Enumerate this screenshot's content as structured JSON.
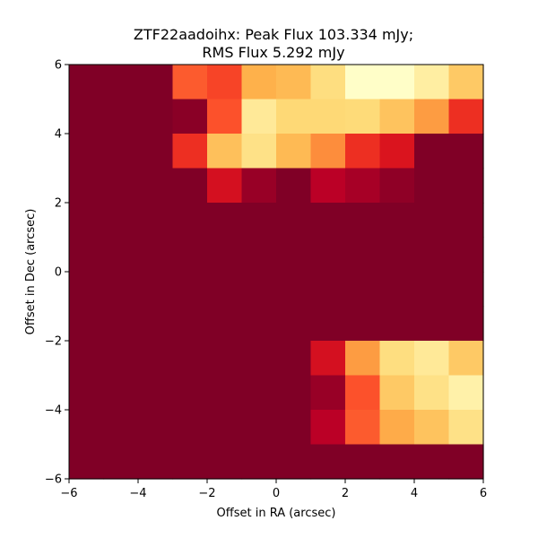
{
  "chart_data": {
    "type": "heatmap",
    "title_line1": "ZTF22aadoihx: Peak Flux 103.334 mJy;",
    "title_line2": "RMS Flux 5.292 mJy",
    "xlabel": "Offset in RA (arcsec)",
    "ylabel": "Offset in Dec (arcsec)",
    "xlim": [
      -6,
      6
    ],
    "ylim": [
      -6,
      6
    ],
    "x_ticks": [
      "−6",
      "−4",
      "−2",
      "0",
      "2",
      "4",
      "6"
    ],
    "y_ticks": [
      "−6",
      "−4",
      "−2",
      "0",
      "2",
      "4",
      "6"
    ],
    "x_tick_values": [
      -6,
      -4,
      -2,
      0,
      2,
      4,
      6
    ],
    "y_tick_values": [
      -6,
      -4,
      -2,
      0,
      2,
      4,
      6
    ],
    "colormap": "YlOrRd_r",
    "grid": false,
    "columns": 12,
    "rows": 12,
    "row_order": "top-to-bottom",
    "values": [
      [
        0.0,
        0.0,
        0.0,
        0.4,
        0.35,
        0.62,
        0.65,
        0.78,
        0.99,
        0.99,
        0.88,
        0.7
      ],
      [
        0.0,
        0.0,
        0.0,
        0.02,
        0.38,
        0.85,
        0.75,
        0.75,
        0.76,
        0.68,
        0.55,
        0.3
      ],
      [
        0.0,
        0.0,
        0.0,
        0.3,
        0.67,
        0.8,
        0.65,
        0.5,
        0.3,
        0.22,
        0.0,
        0.0
      ],
      [
        0.0,
        0.0,
        0.0,
        0.0,
        0.2,
        0.05,
        0.0,
        0.12,
        0.08,
        0.03,
        0.0,
        0.0
      ],
      [
        0.0,
        0.0,
        0.0,
        0.0,
        0.0,
        0.0,
        0.0,
        0.0,
        0.0,
        0.0,
        0.0,
        0.0
      ],
      [
        0.0,
        0.0,
        0.0,
        0.0,
        0.0,
        0.0,
        0.0,
        0.0,
        0.0,
        0.0,
        0.0,
        0.0
      ],
      [
        0.0,
        0.0,
        0.0,
        0.0,
        0.0,
        0.0,
        0.0,
        0.0,
        0.0,
        0.0,
        0.0,
        0.0
      ],
      [
        0.0,
        0.0,
        0.0,
        0.0,
        0.0,
        0.0,
        0.0,
        0.0,
        0.0,
        0.0,
        0.0,
        0.0
      ],
      [
        0.0,
        0.0,
        0.0,
        0.0,
        0.0,
        0.0,
        0.0,
        0.2,
        0.55,
        0.78,
        0.85,
        0.7
      ],
      [
        0.0,
        0.0,
        0.0,
        0.0,
        0.0,
        0.0,
        0.0,
        0.05,
        0.38,
        0.7,
        0.8,
        0.9
      ],
      [
        0.0,
        0.0,
        0.0,
        0.0,
        0.0,
        0.0,
        0.0,
        0.12,
        0.4,
        0.6,
        0.68,
        0.8
      ],
      [
        0.0,
        0.0,
        0.0,
        0.0,
        0.0,
        0.0,
        0.0,
        0.0,
        0.0,
        0.0,
        0.0,
        0.0
      ]
    ]
  }
}
